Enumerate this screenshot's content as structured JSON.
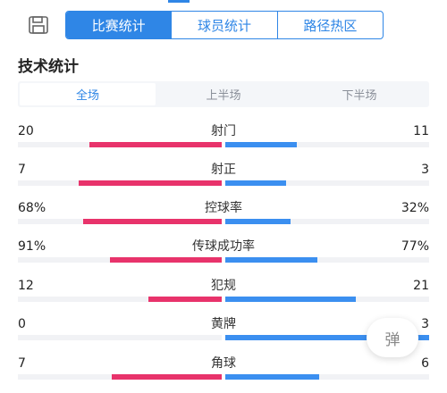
{
  "top_tabs": [
    "比赛统计",
    "球员统计",
    "路径热区"
  ],
  "section_title": "技术统计",
  "half_tabs": [
    "全场",
    "上半场",
    "下半场"
  ],
  "stats": [
    {
      "name": "射门",
      "left": "20",
      "right": "11",
      "left_frac": 0.65,
      "right_frac": 0.35
    },
    {
      "name": "射正",
      "left": "7",
      "right": "3",
      "left_frac": 0.7,
      "right_frac": 0.3
    },
    {
      "name": "控球率",
      "left": "68%",
      "right": "32%",
      "left_frac": 0.68,
      "right_frac": 0.32
    },
    {
      "name": "传球成功率",
      "left": "91%",
      "right": "77%",
      "left_frac": 0.55,
      "right_frac": 0.45
    },
    {
      "name": "犯规",
      "left": "12",
      "right": "21",
      "left_frac": 0.36,
      "right_frac": 0.64
    },
    {
      "name": "黄牌",
      "left": "0",
      "right": "3",
      "left_frac": 0.0,
      "right_frac": 1.0
    },
    {
      "name": "角球",
      "left": "7",
      "right": "6",
      "left_frac": 0.54,
      "right_frac": 0.46
    }
  ],
  "float_button": "弹",
  "colors": {
    "accent": "#2f86e6",
    "home": "#e8336b",
    "away": "#3b8ff0"
  },
  "icons": {
    "save": "save-icon"
  }
}
